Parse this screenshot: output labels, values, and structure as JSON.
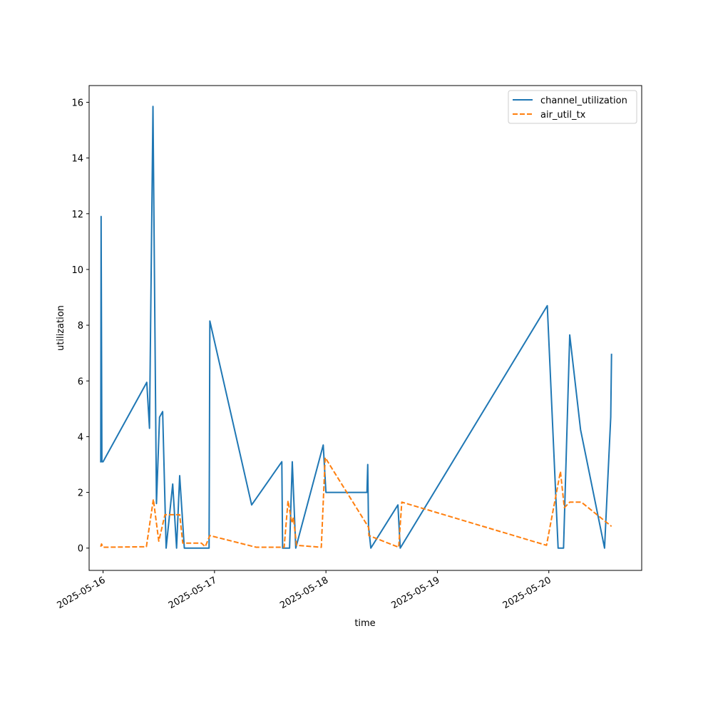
{
  "chart_data": {
    "type": "line",
    "xlabel": "time",
    "ylabel": "utilization",
    "xlim": [
      "2025-05-15 21:00",
      "2025-05-20 20:00"
    ],
    "ylim": [
      -0.8,
      16.6
    ],
    "x_ticks": [
      "2025-05-16",
      "2025-05-17",
      "2025-05-18",
      "2025-05-19",
      "2025-05-20"
    ],
    "y_ticks": [
      0,
      2,
      4,
      6,
      8,
      10,
      12,
      14,
      16
    ],
    "legend_position": "top-right",
    "grid": false,
    "series": [
      {
        "name": "channel_utilization",
        "color": "#1f77b4",
        "style": "solid",
        "points": [
          [
            "2025-05-15 23:30",
            3.1
          ],
          [
            "2025-05-15 23:35",
            11.9
          ],
          [
            "2025-05-15 23:45",
            3.1
          ],
          [
            "2025-05-16 00:00",
            3.1
          ],
          [
            "2025-05-16 09:25",
            5.95
          ],
          [
            "2025-05-16 10:00",
            4.3
          ],
          [
            "2025-05-16 10:45",
            15.85
          ],
          [
            "2025-05-16 11:30",
            1.6
          ],
          [
            "2025-05-16 12:10",
            4.7
          ],
          [
            "2025-05-16 12:50",
            4.9
          ],
          [
            "2025-05-16 13:35",
            0.0
          ],
          [
            "2025-05-16 15:00",
            2.3
          ],
          [
            "2025-05-16 15:50",
            0.0
          ],
          [
            "2025-05-16 16:30",
            2.6
          ],
          [
            "2025-05-16 17:30",
            0.0
          ],
          [
            "2025-05-16 22:50",
            0.0
          ],
          [
            "2025-05-16 23:00",
            8.15
          ],
          [
            "2025-05-17 08:00",
            1.55
          ],
          [
            "2025-05-17 14:30",
            3.1
          ],
          [
            "2025-05-17 14:40",
            0.0
          ],
          [
            "2025-05-17 16:10",
            0.0
          ],
          [
            "2025-05-17 16:45",
            3.1
          ],
          [
            "2025-05-17 17:30",
            0.0
          ],
          [
            "2025-05-17 23:25",
            3.7
          ],
          [
            "2025-05-18 00:00",
            2.0
          ],
          [
            "2025-05-18 08:50",
            2.0
          ],
          [
            "2025-05-18 09:00",
            3.0
          ],
          [
            "2025-05-18 09:10",
            0.8
          ],
          [
            "2025-05-18 09:40",
            0.0
          ],
          [
            "2025-05-18 15:30",
            1.55
          ],
          [
            "2025-05-18 16:00",
            0.0
          ],
          [
            "2025-05-19 23:40",
            8.7
          ],
          [
            "2025-05-20 02:00",
            0.0
          ],
          [
            "2025-05-20 03:10",
            0.0
          ],
          [
            "2025-05-20 04:30",
            7.65
          ],
          [
            "2025-05-20 06:50",
            4.25
          ],
          [
            "2025-05-20 12:00",
            0.0
          ],
          [
            "2025-05-20 13:20",
            4.7
          ],
          [
            "2025-05-20 13:30",
            6.95
          ]
        ]
      },
      {
        "name": "air_util_tx",
        "color": "#ff7f0e",
        "style": "dashed",
        "points": [
          [
            "2025-05-15 23:30",
            0.05
          ],
          [
            "2025-05-15 23:40",
            0.15
          ],
          [
            "2025-05-16 00:00",
            0.03
          ],
          [
            "2025-05-16 09:20",
            0.05
          ],
          [
            "2025-05-16 10:50",
            1.75
          ],
          [
            "2025-05-16 12:00",
            0.25
          ],
          [
            "2025-05-16 13:20",
            1.2
          ],
          [
            "2025-05-16 15:20",
            1.2
          ],
          [
            "2025-05-16 16:30",
            1.2
          ],
          [
            "2025-05-16 17:10",
            0.18
          ],
          [
            "2025-05-16 21:10",
            0.18
          ],
          [
            "2025-05-16 22:00",
            0.05
          ],
          [
            "2025-05-16 23:00",
            0.45
          ],
          [
            "2025-05-17 09:00",
            0.03
          ],
          [
            "2025-05-17 15:00",
            0.03
          ],
          [
            "2025-05-17 15:50",
            1.7
          ],
          [
            "2025-05-17 16:40",
            0.9
          ],
          [
            "2025-05-17 17:00",
            1.1
          ],
          [
            "2025-05-17 17:40",
            0.1
          ],
          [
            "2025-05-17 23:00",
            0.03
          ],
          [
            "2025-05-17 23:50",
            3.25
          ],
          [
            "2025-05-18 09:10",
            0.75
          ],
          [
            "2025-05-18 09:15",
            0.45
          ],
          [
            "2025-05-18 15:40",
            0.03
          ],
          [
            "2025-05-18 16:20",
            1.65
          ],
          [
            "2025-05-19 23:30",
            0.1
          ],
          [
            "2025-05-20 02:30",
            2.75
          ],
          [
            "2025-05-20 03:20",
            1.45
          ],
          [
            "2025-05-20 04:30",
            1.65
          ],
          [
            "2025-05-20 07:00",
            1.65
          ],
          [
            "2025-05-20 13:30",
            0.78
          ]
        ]
      }
    ]
  }
}
